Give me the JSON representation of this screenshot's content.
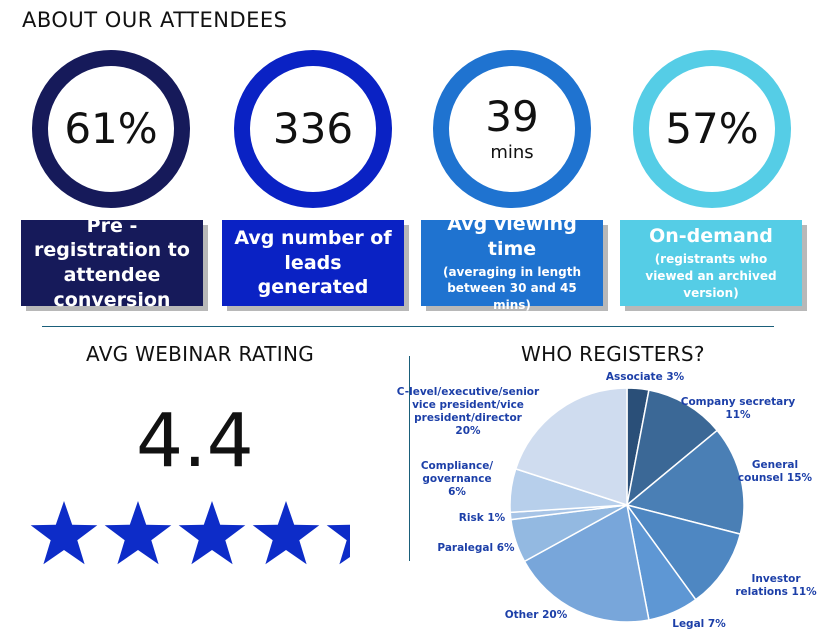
{
  "header": {
    "title": "ABOUT OUR ATTENDEES"
  },
  "stats": [
    {
      "value": "61%",
      "unit": "",
      "label": "Pre - registration to attendee conversion",
      "note": "",
      "ring_color": "#161a5a",
      "box_color": "#161a5a"
    },
    {
      "value": "336",
      "unit": "",
      "label": "Avg number of leads generated",
      "note": "",
      "ring_color": "#0a22c4",
      "box_color": "#0a22c4"
    },
    {
      "value": "39",
      "unit": "mins",
      "label": "Avg viewing time",
      "note": "(averaging in length between 30 and 45 mins)",
      "ring_color": "#1f73d0",
      "box_color": "#1f73d0"
    },
    {
      "value": "57%",
      "unit": "",
      "label": "On-demand",
      "note": "(registrants who viewed an archived version)",
      "ring_color": "#55cde6",
      "box_color": "#55cde6"
    }
  ],
  "rating": {
    "title": "AVG WEBINAR RATING",
    "value": "4.4",
    "score": 4.4,
    "max": 5,
    "star_color": "#0d2cc8"
  },
  "chart_data": {
    "type": "pie",
    "title": "WHO REGISTERS?",
    "slices": [
      {
        "label": [
          "Associate 3%"
        ],
        "value": 3,
        "color": "#2a4f78"
      },
      {
        "label": [
          "Company secretary",
          "11%"
        ],
        "value": 11,
        "color": "#3b6896"
      },
      {
        "label": [
          "General",
          "counsel 15%"
        ],
        "value": 15,
        "color": "#4a7fb5"
      },
      {
        "label": [
          "Investor",
          "relations 11%"
        ],
        "value": 11,
        "color": "#4e87c2"
      },
      {
        "label": [
          "Legal 7%"
        ],
        "value": 7,
        "color": "#5e97d4"
      },
      {
        "label": [
          "Other 20%"
        ],
        "value": 20,
        "color": "#78a6da"
      },
      {
        "label": [
          "Paralegal 6%"
        ],
        "value": 6,
        "color": "#93b9e1"
      },
      {
        "label": [
          "Risk 1%"
        ],
        "value": 1,
        "color": "#a7c4e6"
      },
      {
        "label": [
          "Compliance/",
          "governance",
          "6%"
        ],
        "value": 6,
        "color": "#b7cfeb"
      },
      {
        "label": [
          "C-level/executive/senior",
          "vice president/vice",
          "president/director",
          "20%"
        ],
        "value": 20,
        "color": "#cfdcef"
      }
    ]
  }
}
